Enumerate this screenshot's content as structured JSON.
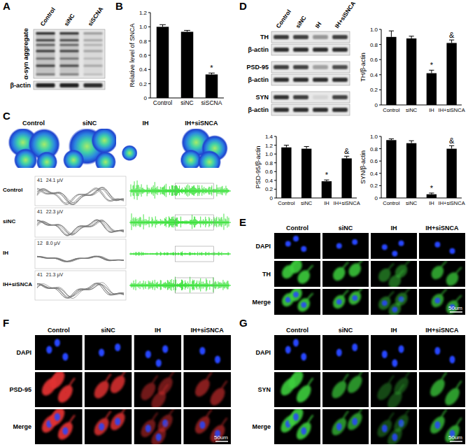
{
  "chart_data": [
    {
      "type": "bar",
      "panel": "B",
      "ylabel": "Relative level of SNCA",
      "categories": [
        "Control",
        "siNC",
        "siSCNA"
      ],
      "values": [
        1.0,
        0.93,
        0.33
      ],
      "errors": [
        0.03,
        0.02,
        0.02
      ],
      "color": "#000000",
      "ylim": [
        0,
        1.2
      ],
      "yticks": [
        0,
        0.2,
        0.4,
        0.6,
        0.8,
        {
          "value": 1,
          "label": "1.0"
        },
        1.2
      ],
      "annotations": [
        {
          "text": "*",
          "category": "siSCNA"
        }
      ]
    },
    {
      "type": "bar",
      "ylabel": "TH/β-actin",
      "categories": [
        "Control",
        "siNC",
        "IH",
        "IH+siSNCA"
      ],
      "values": [
        0.9,
        0.88,
        0.42,
        0.82
      ],
      "errors": [
        0.08,
        0.03,
        0.04,
        0.04
      ],
      "color": "#000000",
      "ylim": [
        0,
        1
      ],
      "yticks": [
        0,
        0.2,
        0.4,
        0.6,
        0.8,
        {
          "value": 1,
          "label": "1.0"
        }
      ],
      "annotations": [
        {
          "text": "*",
          "category": "IH"
        },
        {
          "text": "&",
          "category": "IH+siSNCA"
        }
      ]
    },
    {
      "type": "bar",
      "ylabel": "PSD-95/β-actin",
      "categories": [
        "Control",
        "siNC",
        "IH",
        "IH+siSNCA"
      ],
      "values": [
        1.15,
        1.12,
        0.38,
        0.9
      ],
      "errors": [
        0.05,
        0.05,
        0.03,
        0.05
      ],
      "color": "#000000",
      "ylim": [
        0,
        1.4
      ],
      "yticks": [
        0,
        0.2,
        0.4,
        0.6,
        0.8,
        {
          "value": 1,
          "label": "1.0"
        },
        1.2,
        1.4
      ],
      "annotations": [
        {
          "text": "*",
          "category": "IH"
        },
        {
          "text": "&",
          "category": "IH+siSNCA"
        }
      ]
    },
    {
      "type": "bar",
      "ylabel": "SYN/β-actin",
      "categories": [
        "Control",
        "siNC",
        "IH",
        "IH+siSNCA"
      ],
      "values": [
        0.94,
        0.89,
        0.06,
        0.8
      ],
      "errors": [
        0.02,
        0.04,
        0.02,
        0.05
      ],
      "color": "#000000",
      "ylim": [
        0,
        1
      ],
      "yticks": [
        0,
        0.2,
        0.4,
        0.6,
        0.8,
        {
          "value": 1,
          "label": "1.0"
        }
      ],
      "annotations": [
        {
          "text": "*",
          "category": "IH"
        },
        {
          "text": "&",
          "category": "IH+siSNCA"
        }
      ]
    }
  ],
  "blot_A": {
    "panel": "A",
    "lanes": [
      "Control",
      "siNC",
      "siSCNA"
    ],
    "rows": [
      {
        "label": "α-syn aggregate",
        "intensity": [
          0.85,
          0.8,
          0.3
        ]
      },
      {
        "label": "β-actin",
        "intensity": [
          0.85,
          0.85,
          0.8
        ]
      }
    ]
  },
  "blot_D": {
    "panel": "D",
    "lanes": [
      "Control",
      "siNC",
      "IH",
      "IH+siSNCA"
    ],
    "rows": [
      {
        "label": "TH",
        "intensity": [
          0.75,
          0.72,
          0.35,
          0.72
        ]
      },
      {
        "label": "β-actin",
        "intensity": [
          0.8,
          0.8,
          0.8,
          0.8
        ]
      },
      {
        "label": "PSD-95",
        "intensity": [
          0.72,
          0.7,
          0.3,
          0.66
        ]
      },
      {
        "label": "β-actin",
        "intensity": [
          0.8,
          0.8,
          0.8,
          0.8
        ]
      },
      {
        "label": "SYN",
        "intensity": [
          0.78,
          0.72,
          0.08,
          0.7
        ]
      },
      {
        "label": "β-actin",
        "intensity": [
          0.8,
          0.8,
          0.8,
          0.8
        ]
      }
    ]
  },
  "panel_C": {
    "panel": "C",
    "groups": [
      "Control",
      "siNC",
      "IH",
      "IH+siSNCA"
    ],
    "recordings": [
      {
        "count": 41,
        "amplitude": 24.1,
        "amplitude_label": "24.1",
        "unit": "μV"
      },
      {
        "count": 41,
        "amplitude": 22.3,
        "amplitude_label": "22.3",
        "unit": "μV"
      },
      {
        "count": 12,
        "amplitude": 8.0,
        "amplitude_label": "8.0",
        "unit": "μV"
      },
      {
        "count": 41,
        "amplitude": 21.3,
        "amplitude_label": "21.3",
        "unit": "μV"
      }
    ]
  },
  "panel_E": {
    "panel": "E",
    "columns": [
      "Control",
      "siNC",
      "IH",
      "IH+siSNCA"
    ],
    "rows": [
      "DAPI",
      "TH",
      "Merge"
    ],
    "color": "#3ccf3c",
    "intensity": [
      0.9,
      0.85,
      0.5,
      0.75
    ],
    "scale_bar": "50um"
  },
  "panel_F": {
    "panel": "F",
    "columns": [
      "Control",
      "siNC",
      "IH",
      "IH+siSNCA"
    ],
    "rows": [
      "DAPI",
      "PSD-95",
      "Merge"
    ],
    "color": "#e03030",
    "intensity": [
      0.95,
      0.85,
      0.5,
      0.6
    ],
    "scale_bar": "50um"
  },
  "panel_G": {
    "panel": "G",
    "columns": [
      "Control",
      "siNC",
      "IH",
      "IH+siSNCA"
    ],
    "rows": [
      "DAPI",
      "SYN",
      "Merge"
    ],
    "color": "#3ccf3c",
    "intensity": [
      0.9,
      0.7,
      0.35,
      0.75
    ],
    "scale_bar": "50um"
  }
}
